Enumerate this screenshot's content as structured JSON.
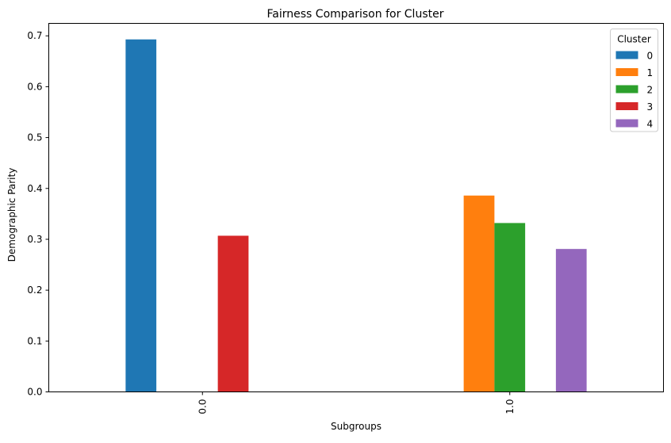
{
  "chart_data": {
    "type": "bar",
    "title": "Fairness Comparison for Cluster",
    "xlabel": "Subgroups",
    "ylabel": "Demographic Parity",
    "categories": [
      "0.0",
      "1.0"
    ],
    "ylim": [
      0,
      0.7245
    ],
    "yticks": [
      "0.0",
      "0.1",
      "0.2",
      "0.3",
      "0.4",
      "0.5",
      "0.6",
      "0.7"
    ],
    "grid": false,
    "legend": {
      "title": "Cluster",
      "position": "top-right"
    },
    "series": [
      {
        "name": "0",
        "color": "#1f77b4",
        "values": [
          0.693,
          null
        ]
      },
      {
        "name": "1",
        "color": "#ff7f0e",
        "values": [
          null,
          0.386
        ]
      },
      {
        "name": "2",
        "color": "#2ca02c",
        "values": [
          null,
          0.332
        ]
      },
      {
        "name": "3",
        "color": "#d62728",
        "values": [
          0.307,
          null
        ]
      },
      {
        "name": "4",
        "color": "#9467bd",
        "values": [
          null,
          0.281
        ]
      }
    ]
  }
}
